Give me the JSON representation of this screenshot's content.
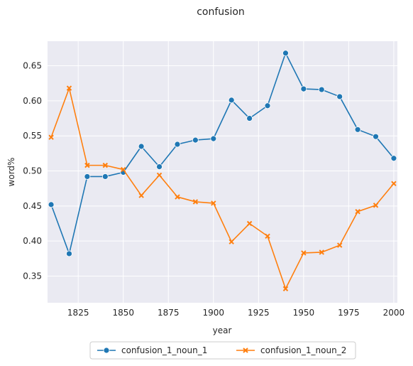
{
  "chart_data": {
    "type": "line",
    "title": "confusion",
    "xlabel": "year",
    "ylabel": "word%",
    "xlim": [
      1808,
      2002
    ],
    "ylim": [
      0.312,
      0.685
    ],
    "xticks": [
      1825,
      1850,
      1875,
      1900,
      1925,
      1950,
      1975,
      2000
    ],
    "yticks": [
      0.35,
      0.4,
      0.45,
      0.5,
      0.55,
      0.6,
      0.65
    ],
    "ytick_labels": [
      "0.35",
      "0.40",
      "0.45",
      "0.50",
      "0.55",
      "0.60",
      "0.65"
    ],
    "grid": true,
    "legend_position": "bottom-center",
    "x": [
      1810,
      1820,
      1830,
      1840,
      1850,
      1860,
      1870,
      1880,
      1890,
      1900,
      1910,
      1920,
      1930,
      1940,
      1950,
      1960,
      1970,
      1980,
      1990,
      2000
    ],
    "series": [
      {
        "name": "confusion_1_noun_1",
        "color": "#1f77b4",
        "marker": "circle",
        "values": [
          0.452,
          0.382,
          0.492,
          0.492,
          0.498,
          0.535,
          0.506,
          0.538,
          0.544,
          0.546,
          0.601,
          0.575,
          0.593,
          0.668,
          0.617,
          0.616,
          0.606,
          0.559,
          0.549,
          0.518
        ]
      },
      {
        "name": "confusion_1_noun_2",
        "color": "#ff7f0e",
        "marker": "x",
        "values": [
          0.548,
          0.618,
          0.508,
          0.508,
          0.502,
          0.465,
          0.494,
          0.463,
          0.456,
          0.454,
          0.399,
          0.425,
          0.407,
          0.332,
          0.383,
          0.384,
          0.394,
          0.442,
          0.451,
          0.482
        ]
      }
    ]
  }
}
